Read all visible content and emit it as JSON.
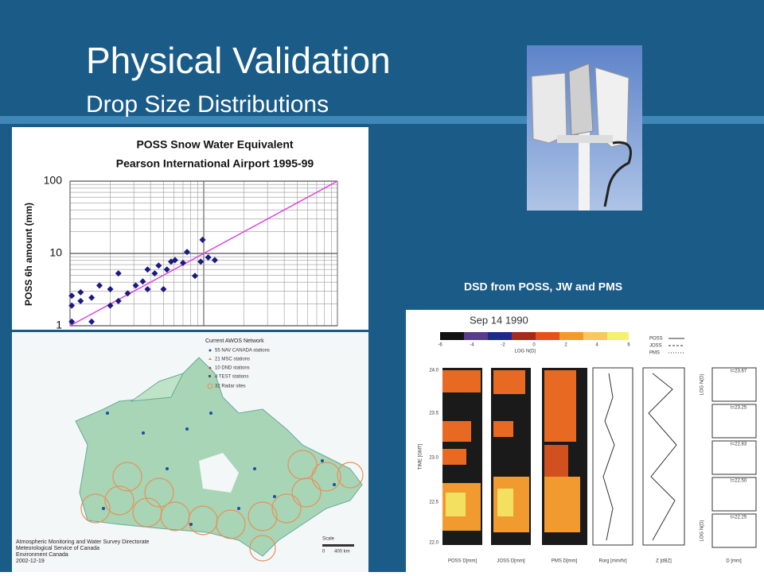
{
  "slide": {
    "title": "Physical Validation",
    "subtitle": "Drop Size Distributions",
    "dsd_caption": "DSD from POSS, JW and PMS"
  },
  "chart_data": {
    "type": "scatter",
    "title": [
      "POSS Snow Water Equivalent",
      "Pearson International Airport 1995-99"
    ],
    "y_label": "POSS 6h amount (mm)",
    "log_scale": true,
    "grid": true,
    "color": "#1a1a80",
    "line_color": "#e040e0",
    "xlim": [
      1,
      100
    ],
    "ylim": [
      1,
      100
    ],
    "yticks": [
      1,
      10,
      100
    ],
    "x": [
      1.03,
      1.03,
      1.03,
      1.2,
      1.2,
      1.45,
      1.45,
      1.66,
      2.0,
      2.0,
      2.3,
      2.3,
      2.7,
      3.1,
      3.5,
      3.8,
      4.3,
      4.6,
      5.0,
      5.3,
      5.7,
      6.1,
      7.0,
      7.5,
      8.6,
      9.5,
      9.8,
      10.8,
      12.1,
      3.8
    ],
    "values": [
      1.14,
      1.9,
      2.6,
      2.9,
      2.2,
      2.45,
      1.14,
      3.6,
      3.2,
      1.9,
      5.3,
      2.2,
      2.8,
      3.6,
      4.1,
      3.2,
      5.3,
      6.8,
      3.2,
      6.0,
      7.7,
      8.1,
      7.4,
      10.5,
      4.9,
      7.7,
      15.4,
      8.8,
      8.1,
      6.0
    ]
  },
  "map": {
    "legend_title": "Current AWOS Network",
    "legend": [
      "55 NAV CANADA stations",
      "21 MSC stations",
      "10 DND stations",
      "4 TEST stations",
      "32 Radar sites"
    ],
    "credits": [
      "Atmospheric Monitoring and Water Survey Directorate",
      "Meteorological Service of Canada",
      "Environment Canada",
      "2002-12-19"
    ],
    "scale": "Scale",
    "scale_ticks": [
      "0",
      "400 km"
    ]
  },
  "dsd_figure": {
    "date": "Sep 14 1990",
    "colorbar_ticks": [
      "-6",
      "-4",
      "-2",
      "0",
      "2",
      "4",
      "6"
    ],
    "colorbar_label": "LOG N(D)",
    "legend": [
      "POSS",
      "JOSS",
      "PMS"
    ],
    "time_axis_label": "TIME [GMT]",
    "time_ticks": [
      "24.0",
      "23.5",
      "23.0",
      "22.5",
      "22.0"
    ],
    "panel_labels": [
      "POSS D[mm]",
      "JOSS D[mm]",
      "PMS D[mm]",
      "Rorg [mm/hr]",
      "Z [dBZ]",
      "D [mm]"
    ],
    "times": [
      "t=23.67",
      "t=23.25",
      "t=22.83",
      "t=22.50",
      "t=22.25"
    ],
    "y_label": "LOG N(D)"
  }
}
